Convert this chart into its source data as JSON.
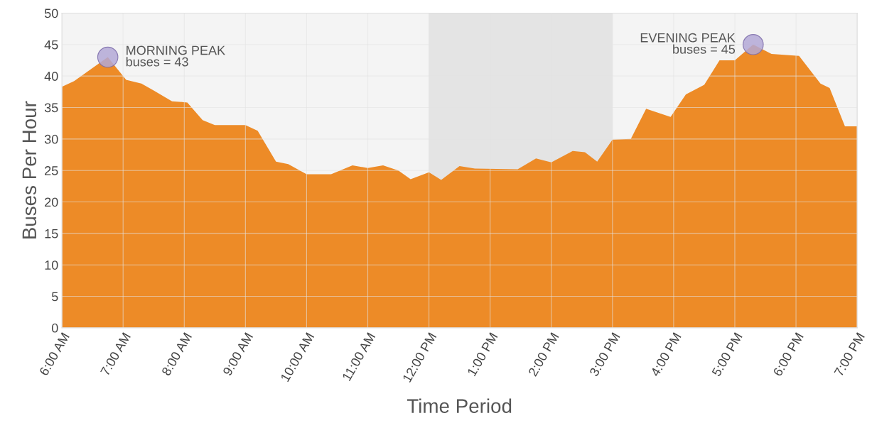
{
  "chart_data": {
    "type": "area",
    "xlabel": "Time Period",
    "ylabel": "Buses Per Hour",
    "x": [
      6.0,
      6.2,
      6.75,
      7.05,
      7.3,
      7.5,
      7.8,
      8.05,
      8.3,
      8.5,
      9.0,
      9.2,
      9.5,
      9.7,
      10.0,
      10.4,
      10.75,
      11.0,
      11.25,
      11.5,
      11.7,
      12.0,
      12.2,
      12.5,
      12.75,
      13.45,
      13.75,
      14.0,
      14.35,
      14.55,
      14.75,
      15.0,
      15.3,
      15.55,
      15.95,
      16.2,
      16.5,
      16.75,
      17.0,
      17.3,
      17.6,
      18.05,
      18.4,
      18.55,
      18.8,
      19.0
    ],
    "series": [
      {
        "color": "#ec8720",
        "values": [
          38.3,
          39.2,
          43,
          39.4,
          38.8,
          37.7,
          36,
          35.8,
          33,
          32.2,
          32.2,
          31.3,
          26.4,
          26,
          24.4,
          24.4,
          25.8,
          25.4,
          25.8,
          25,
          23.6,
          24.7,
          23.5,
          25.7,
          25.3,
          25.2,
          26.9,
          26.3,
          28.1,
          27.9,
          26.4,
          29.9,
          30,
          34.8,
          33.5,
          37.1,
          38.6,
          42.5,
          42.5,
          45,
          43.5,
          43.2,
          38.8,
          38.1,
          32,
          32
        ]
      }
    ],
    "xlim": [
      6,
      19
    ],
    "ylim": [
      0,
      50
    ],
    "xticks": [
      {
        "value": 6,
        "label": "6:00 AM"
      },
      {
        "value": 7,
        "label": "7:00 AM"
      },
      {
        "value": 8,
        "label": "8:00 AM"
      },
      {
        "value": 9,
        "label": "9:00 AM"
      },
      {
        "value": 10,
        "label": "10:00 AM"
      },
      {
        "value": 11,
        "label": "11:00 AM"
      },
      {
        "value": 12,
        "label": "12:00 PM"
      },
      {
        "value": 13,
        "label": "1:00 PM"
      },
      {
        "value": 14,
        "label": "2:00 PM"
      },
      {
        "value": 15,
        "label": "3:00 PM"
      },
      {
        "value": 16,
        "label": "4:00 PM"
      },
      {
        "value": 17,
        "label": "5:00 PM"
      },
      {
        "value": 18,
        "label": "6:00 PM"
      },
      {
        "value": 19,
        "label": "7:00 PM"
      }
    ],
    "yticks": [
      0,
      5,
      10,
      15,
      20,
      25,
      30,
      35,
      40,
      45,
      50
    ],
    "grid": true,
    "bands": [
      {
        "axis": "x",
        "from": 12,
        "to": 15,
        "color": "#d8d8d8"
      }
    ],
    "annotations": [
      {
        "text": "MORNING PEAK\nbuses = 43",
        "x": 6.75,
        "y": 43
      },
      {
        "text": "EVENING PEAK\nbuses = 45",
        "x": 17.3,
        "y": 45
      }
    ]
  }
}
